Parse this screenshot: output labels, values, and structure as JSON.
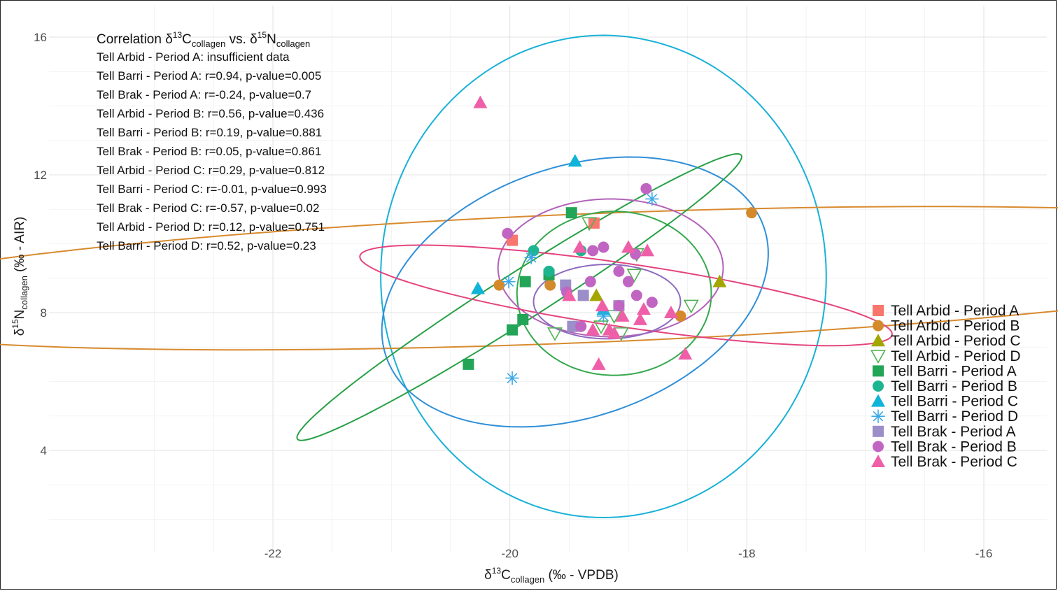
{
  "chart_data": {
    "type": "scatter",
    "title": "",
    "xlabel": {
      "prefix": "δ",
      "sup": "13",
      "main": "C",
      "sub": "collagen",
      "suffix": " (‰ - VPDB)"
    },
    "ylabel": {
      "prefix": "δ",
      "sup": "15",
      "main": "N",
      "sub": "collagen",
      "suffix": " (‰ - AIR)"
    },
    "xlim": [
      -23.7,
      -15.6
    ],
    "ylim": [
      2.0,
      16.2
    ],
    "x_ticks": [
      -22,
      -20,
      -18,
      -16
    ],
    "y_ticks": [
      4,
      8,
      12,
      16
    ],
    "grid": true,
    "legend_position": "right",
    "annotation": {
      "heading": {
        "prefix": "Correlation δ",
        "sup1": "13",
        "main1": "C",
        "sub1": "collagen",
        "mid": " vs. δ",
        "sup2": "15",
        "main2": "N",
        "sub2": "collagen"
      },
      "lines": [
        "Tell Arbid - Period A: insufficient data",
        "Tell Barri - Period A: r=0.94, p-value=0.005",
        "Tell Brak - Period A: r=-0.24, p-value=0.7",
        "Tell Arbid - Period B: r=0.56, p-value=0.436",
        "Tell Barri - Period B: r=0.19, p-value=0.881",
        "Tell Brak - Period B: r=0.05, p-value=0.861",
        "Tell Arbid - Period C: r=0.29, p-value=0.812",
        "Tell Barri - Period C: r=-0.01, p-value=0.993",
        "Tell Brak - Period C: r=-0.57, p-value=0.02",
        "Tell Arbid - Period D: r=0.12, p-value=0.751",
        "Tell Barri - Period D: r=0.52, p-value=0.23"
      ]
    },
    "series": [
      {
        "name": "Tell Arbid - Period A",
        "color": "#f8766d",
        "marker": "square",
        "points": [
          [
            -19.98,
            10.1
          ],
          [
            -19.29,
            10.6
          ]
        ]
      },
      {
        "name": "Tell Arbid - Period B",
        "color": "#d4892a",
        "marker": "circle",
        "points": [
          [
            -17.96,
            10.9
          ],
          [
            -20.09,
            8.8
          ],
          [
            -19.66,
            8.8
          ],
          [
            -18.56,
            7.9
          ]
        ]
      },
      {
        "name": "Tell Arbid - Period C",
        "color": "#a3a500",
        "marker": "triangle",
        "points": [
          [
            -18.23,
            8.9
          ],
          [
            -19.27,
            8.5
          ]
        ]
      },
      {
        "name": "Tell Arbid - Period D",
        "color": "#4fb24f",
        "marker": "triangle-open",
        "points": [
          [
            -19.33,
            10.6
          ],
          [
            -18.93,
            9.7
          ],
          [
            -18.95,
            9.1
          ],
          [
            -18.47,
            8.2
          ],
          [
            -19.23,
            7.6
          ],
          [
            -19.06,
            7.4
          ],
          [
            -19.12,
            7.9
          ],
          [
            -19.62,
            7.4
          ]
        ]
      },
      {
        "name": "Tell Barri - Period A",
        "color": "#22a557",
        "marker": "square",
        "points": [
          [
            -20.35,
            6.5
          ],
          [
            -19.98,
            7.5
          ],
          [
            -19.89,
            7.8
          ],
          [
            -19.87,
            8.9
          ],
          [
            -19.48,
            10.9
          ],
          [
            -19.67,
            9.1
          ]
        ]
      },
      {
        "name": "Tell Barri - Period B",
        "color": "#1db58f",
        "marker": "circle",
        "points": [
          [
            -19.8,
            9.8
          ],
          [
            -19.67,
            9.2
          ],
          [
            -19.4,
            9.8
          ]
        ]
      },
      {
        "name": "Tell Barri - Period C",
        "color": "#0fb4d8",
        "marker": "triangle",
        "points": [
          [
            -20.27,
            8.7
          ],
          [
            -19.45,
            12.4
          ],
          [
            -19.21,
            8.1
          ]
        ]
      },
      {
        "name": "Tell Barri - Period D",
        "color": "#3ba8e8",
        "marker": "asterisk",
        "points": [
          [
            -20.01,
            8.9
          ],
          [
            -19.98,
            6.1
          ],
          [
            -19.82,
            9.6
          ],
          [
            -18.8,
            11.3
          ],
          [
            -19.21,
            7.9
          ]
        ]
      },
      {
        "name": "Tell Brak - Period A",
        "color": "#9b8ec9",
        "marker": "square",
        "points": [
          [
            -19.53,
            8.8
          ],
          [
            -19.47,
            7.6
          ],
          [
            -19.38,
            8.5
          ],
          [
            -19.08,
            8.2
          ]
        ]
      },
      {
        "name": "Tell Brak - Period B",
        "color": "#c065c2",
        "marker": "circle",
        "points": [
          [
            -20.02,
            10.3
          ],
          [
            -19.52,
            8.6
          ],
          [
            -19.32,
            8.9
          ],
          [
            -19.3,
            9.8
          ],
          [
            -19.21,
            9.9
          ],
          [
            -19.08,
            9.2
          ],
          [
            -19.0,
            8.9
          ],
          [
            -18.94,
            9.7
          ],
          [
            -18.85,
            11.6
          ],
          [
            -18.8,
            8.3
          ],
          [
            -19.4,
            7.6
          ],
          [
            -18.93,
            8.5
          ],
          [
            -19.08,
            8.2
          ]
        ]
      },
      {
        "name": "Tell Brak - Period C",
        "color": "#ef5fa8",
        "marker": "triangle",
        "points": [
          [
            -20.25,
            14.1
          ],
          [
            -19.41,
            9.9
          ],
          [
            -19.25,
            6.5
          ],
          [
            -19.22,
            8.2
          ],
          [
            -19.12,
            7.4
          ],
          [
            -19.0,
            9.9
          ],
          [
            -18.87,
            8.1
          ],
          [
            -18.84,
            9.8
          ],
          [
            -18.9,
            7.8
          ],
          [
            -18.64,
            8.0
          ],
          [
            -18.52,
            6.8
          ],
          [
            -19.5,
            8.5
          ],
          [
            -19.3,
            7.5
          ],
          [
            -19.16,
            7.5
          ],
          [
            -19.05,
            7.9
          ]
        ]
      }
    ],
    "ellipses": [
      {
        "series": "Tell Barri - Period C",
        "color": "#18b1d6",
        "cx": -19.21,
        "cy": 9.05,
        "rx": 1.88,
        "ry": 7.0,
        "angle": 0
      },
      {
        "series": "Tell Arbid - Period B",
        "color": "#d88a2e",
        "cx": -19.35,
        "cy": 9.0,
        "rx": 6.7,
        "ry": 1.85,
        "angle": 8.5
      },
      {
        "series": "Tell Barri - Period D",
        "color": "#2f8fd8",
        "cx": -19.45,
        "cy": 8.6,
        "rx": 1.55,
        "ry": 3.95,
        "angle": -8
      },
      {
        "series": "Tell Barri - Period A",
        "color": "#27a046",
        "cx": -19.92,
        "cy": 8.45,
        "rx": 0.34,
        "ry": 4.55,
        "angle": -24
      },
      {
        "series": "Tell Arbid - Period D",
        "color": "#34a84e",
        "cx": -19.12,
        "cy": 8.56,
        "rx": 0.82,
        "ry": 2.38,
        "angle": 0
      },
      {
        "series": "Tell Brak - Period B",
        "color": "#b262b9",
        "cx": -19.15,
        "cy": 9.3,
        "rx": 0.95,
        "ry": 2.0,
        "angle": 0
      },
      {
        "series": "Tell Brak - Period C",
        "color": "#e4447e",
        "cx": -19.02,
        "cy": 8.5,
        "rx": 0.82,
        "ry": 2.55,
        "angle": 60
      },
      {
        "series": "Tell Brak - Period A",
        "color": "#8d6bbf",
        "cx": -19.18,
        "cy": 8.32,
        "rx": 0.62,
        "ry": 1.08,
        "angle": 0
      }
    ]
  }
}
